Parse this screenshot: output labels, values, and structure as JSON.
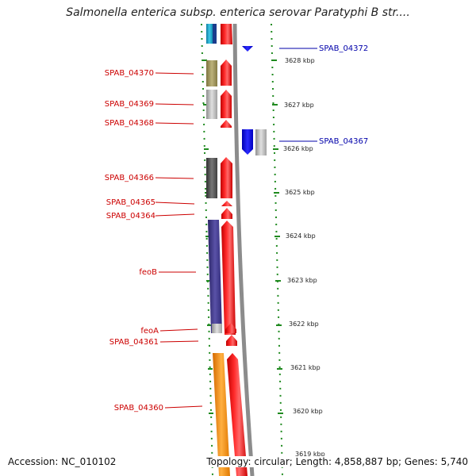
{
  "header": {
    "title": "Salmonella enterica subsp. enterica serovar Paratyphi B str...."
  },
  "footer": {
    "accession": "Accession: NC_010102",
    "topology": "Topology: circular; Length: 4,858,887 bp; Genes: 5,740"
  },
  "colors": {
    "forward_label": "#cc0000",
    "reverse_label": "#0000aa",
    "cds_forward": "#ff0000",
    "cds_reverse": "#0000ff",
    "tick": "#1f8a1f",
    "backbone": "#8c8c8c"
  },
  "left_labels": [
    {
      "text": "SPAB_04370"
    },
    {
      "text": "SPAB_04369"
    },
    {
      "text": "SPAB_04368"
    },
    {
      "text": "SPAB_04366"
    },
    {
      "text": "SPAB_04365"
    },
    {
      "text": "SPAB_04364"
    },
    {
      "text": "feoB"
    },
    {
      "text": "feoA"
    },
    {
      "text": "SPAB_04361"
    },
    {
      "text": "SPAB_04360"
    }
  ],
  "right_labels": [
    {
      "text": "SPAB_04372"
    },
    {
      "text": "SPAB_04367"
    }
  ],
  "kbp_ticks": [
    "3628 kbp",
    "3627 kbp",
    "3626 kbp",
    "3625 kbp",
    "3624 kbp",
    "3623 kbp",
    "3622 kbp",
    "3621 kbp",
    "3620 kbp",
    "3619 kbp"
  ]
}
